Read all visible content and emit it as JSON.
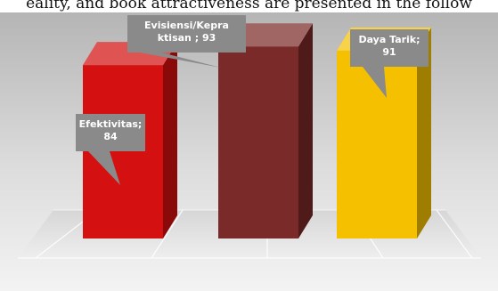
{
  "caption_fragment": "eality, and book attractiveness are presented in the follow",
  "chart_data": {
    "type": "bar",
    "categories": [
      "Efektivitas",
      "Evisiensi/Kepraktisan",
      "Daya Tarik"
    ],
    "values": [
      84,
      93,
      91
    ],
    "data_labels": [
      [
        "Efektivitas;",
        "84"
      ],
      [
        "Evisiensi/Kepra",
        "ktisan ; 93"
      ],
      [
        "Daya Tarik;",
        "91"
      ]
    ],
    "colors": [
      "#d41010",
      "#7a2a28",
      "#f5c000"
    ],
    "ylim": [
      0,
      100
    ],
    "bar_style": "3d",
    "grid": true,
    "title": "",
    "xlabel": "",
    "ylabel": ""
  }
}
